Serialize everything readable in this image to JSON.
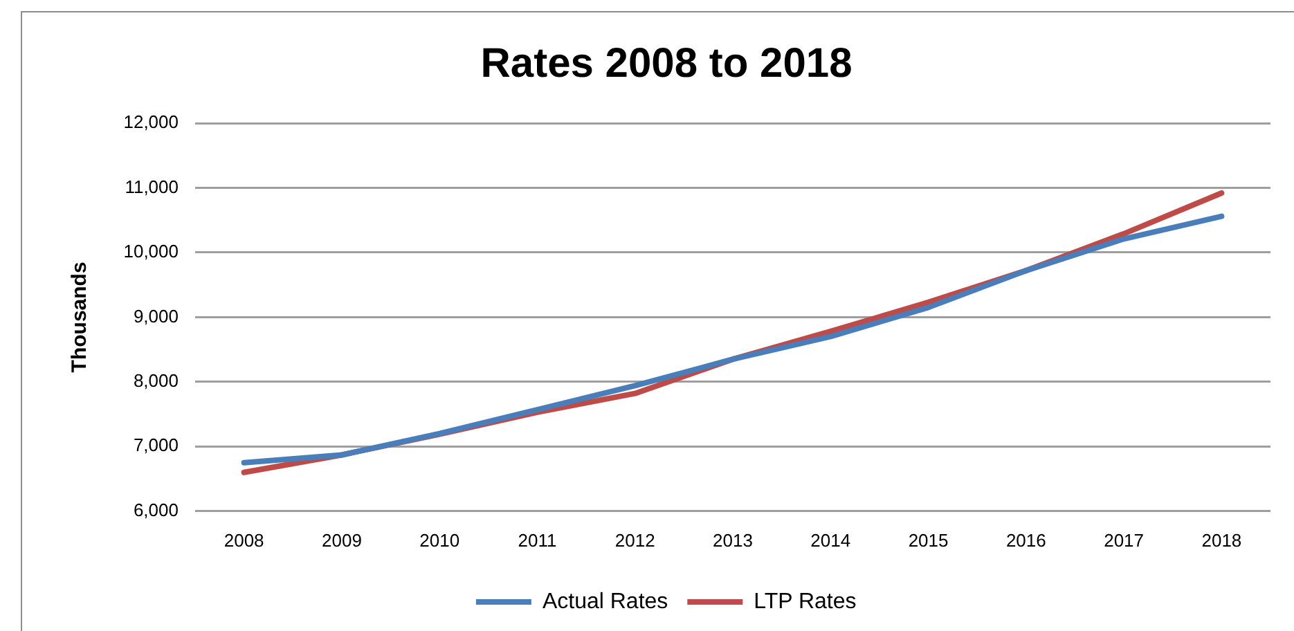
{
  "chart_data": {
    "type": "line",
    "title": "Rates 2008 to 2018",
    "ylabel": "Thousands",
    "categories": [
      "2008",
      "2009",
      "2010",
      "2011",
      "2012",
      "2013",
      "2014",
      "2015",
      "2016",
      "2017",
      "2018"
    ],
    "series": [
      {
        "name": "Actual Rates",
        "color": "#4a7ebb",
        "values": [
          6750,
          6870,
          7200,
          7570,
          7940,
          8350,
          8700,
          9150,
          9720,
          10210,
          10560
        ]
      },
      {
        "name": "LTP Rates",
        "color": "#be4b48",
        "values": [
          6600,
          6870,
          7190,
          7530,
          7820,
          8350,
          8780,
          9230,
          9720,
          10290,
          10920
        ]
      }
    ],
    "ylim": [
      6000,
      12000
    ],
    "yticks": [
      {
        "value": 6000,
        "label": "6,000"
      },
      {
        "value": 7000,
        "label": "7,000"
      },
      {
        "value": 8000,
        "label": "8,000"
      },
      {
        "value": 9000,
        "label": "9,000"
      },
      {
        "value": 10000,
        "label": "10,000"
      },
      {
        "value": 11000,
        "label": "11,000"
      },
      {
        "value": 12000,
        "label": "12,000"
      }
    ],
    "grid": "y",
    "legend": "bottom",
    "marker": "none",
    "line_style": "solid"
  }
}
